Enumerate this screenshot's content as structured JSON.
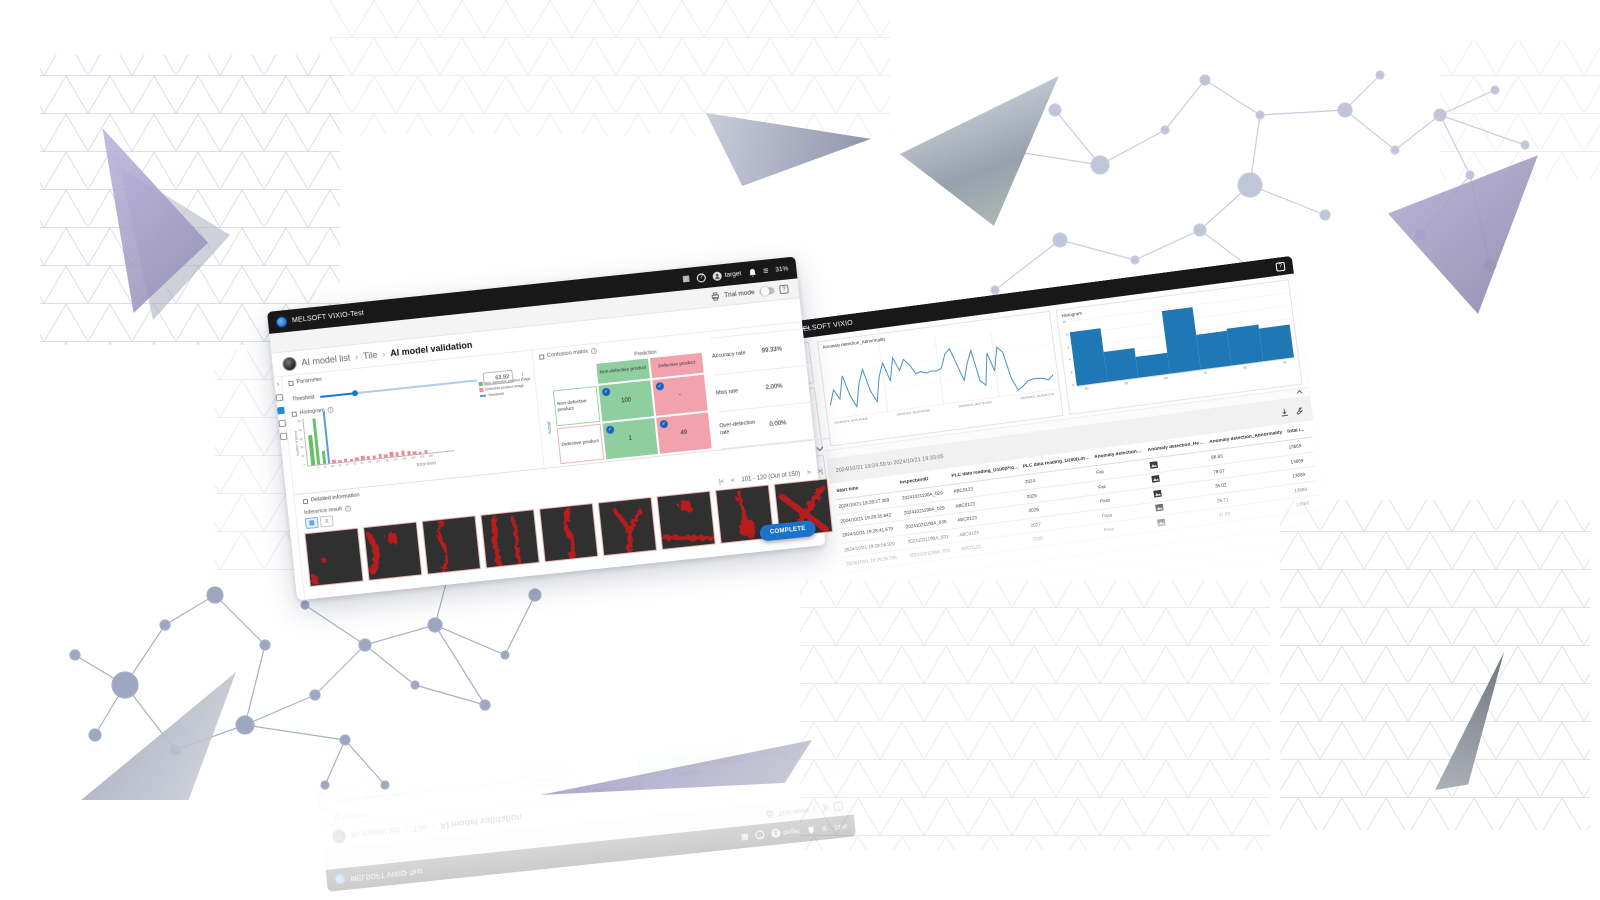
{
  "left_window": {
    "titlebar": {
      "title": "MELSOFT VIXIO-Test",
      "user": "target",
      "percent": "31%"
    },
    "toolbar": {
      "trial_mode": "Trial mode"
    },
    "breadcrumb": {
      "items": [
        "AI model list",
        "Tile",
        "AI model validation"
      ]
    },
    "parameter": {
      "label": "Parameter",
      "threshold_label": "Threshold",
      "threshold_value": "63.92"
    },
    "confusion_matrix": {
      "label": "Confusion matrix",
      "prediction": "Prediction",
      "actual": "Actual",
      "columns": [
        "Non-defective product",
        "Defective product"
      ],
      "rows": [
        "Non-defective product",
        "Defective product"
      ],
      "cells": [
        [
          "100",
          "-"
        ],
        [
          "1",
          "49"
        ]
      ]
    },
    "stats": [
      {
        "label": "Accuracy rate",
        "value": "99.33%"
      },
      {
        "label": "Miss rate",
        "value": "2.00%"
      },
      {
        "label": "Over-detection rate",
        "value": "0.00%"
      }
    ],
    "detailed_information": "Detailed information",
    "inference_result": "Inference result",
    "pagination": "101 - 120 (Out of 150)",
    "complete_button": "COMPLETE"
  },
  "right_window": {
    "title": "MELSOFT VIXIO",
    "toolbar": {
      "range_text": "2024/10/21 19:24:59 to 2024/10/21 19:33:05"
    },
    "table": {
      "headers": [
        "Start time",
        "InspectionID",
        "PLC data reading_D100(Product...",
        "PLC data reading_D200(LotNo)...",
        "Anomaly detection_AI...",
        "Anomaly detection_Heatmap",
        "Anomaly detection_Abnormality",
        "Total i..."
      ],
      "rows": [
        [
          "2024/10/21 19:28:27.389",
          "20241021190A_029",
          "ABC0123",
          "2024",
          "Fail",
          "",
          "66.83",
          "13669"
        ],
        [
          "2024/10/21 19:28:35.842",
          "20241021190A_029",
          "ABC0123",
          "2025",
          "Fail",
          "",
          "78.07",
          "13669"
        ],
        [
          "2024/10/21 19:28:41.679",
          "20241021190A_030",
          "ABC0123",
          "2026",
          "Pass",
          "",
          "35.02",
          "13669"
        ],
        [
          "2024/10/21 19:28:56.920",
          "20241021190A_031",
          "ABC0123",
          "2027",
          "Pass",
          "",
          "36.71",
          "13669"
        ],
        [
          "2024/10/21 19:29:26.705",
          "20241021190A_032",
          "ABC0123",
          "2028",
          "Pass",
          "",
          "41.63",
          "13669"
        ],
        [
          "",
          "",
          "",
          "",
          "",
          "",
          "",
          ""
        ],
        [
          "",
          "",
          "",
          "",
          "",
          "",
          "",
          ""
        ],
        [
          "",
          "",
          "",
          "",
          "",
          "",
          "",
          ""
        ]
      ]
    }
  },
  "chart_data": [
    {
      "id": "error-level-histogram",
      "type": "bar",
      "title": "Histogram",
      "xlabel": "Error level",
      "ylabel": "Number of pieces",
      "ylim": [
        0,
        50
      ],
      "y_ticks": [
        50,
        40,
        30,
        20,
        10,
        0
      ],
      "x_ticks": [
        "0",
        "14",
        "28",
        "42",
        "56",
        "70",
        "84",
        "98",
        "112",
        "126",
        "140",
        "154",
        "168",
        "182",
        "196"
      ],
      "series": [
        {
          "name": "Non-defective product image",
          "color": "#6abf69",
          "values": [
            33,
            50,
            14
          ]
        },
        {
          "name": "Defective product image",
          "color": "#f28b94",
          "values": [
            3,
            2,
            3,
            2,
            3,
            4,
            3,
            3,
            4,
            3,
            5,
            4,
            5,
            4,
            3,
            2,
            3
          ]
        }
      ],
      "threshold": {
        "name": "Threshold",
        "color": "#5b9bd5",
        "value": 63.92
      },
      "legend_position": "right"
    },
    {
      "id": "abnormality-line",
      "type": "line",
      "title": "Anomaly detection_Abnormality",
      "color": "#4a90c9",
      "ylim": [
        0,
        90
      ],
      "x_ticks": [
        "2024/10/21 19:25:43.846",
        "2024/10/21 19:26:25.049",
        "2024/10/21 19:27:31.063",
        "2024/10/21 19:29:41.679"
      ],
      "values": [
        18,
        38,
        25,
        55,
        28,
        12,
        42,
        60,
        30,
        15,
        48,
        65,
        40,
        70,
        52,
        66,
        58,
        45,
        47,
        44,
        46,
        45,
        48,
        66,
        72,
        50,
        28,
        50,
        66,
        25,
        18,
        60,
        35,
        66,
        58,
        22,
        6,
        10,
        16,
        18,
        18,
        17,
        14,
        20
      ]
    },
    {
      "id": "abnormality-histogram",
      "type": "bar",
      "title": "Histogram",
      "color": "#1f77b4",
      "ylim": [
        0,
        12.5
      ],
      "y_ticks": [
        10,
        8,
        6,
        4,
        2,
        0
      ],
      "x_ticks": [
        "40",
        "50",
        "60",
        "70",
        "80",
        "90"
      ],
      "values": [
        10.3,
        5.6,
        3.9,
        12,
        6.6,
        7,
        6.2
      ]
    }
  ]
}
